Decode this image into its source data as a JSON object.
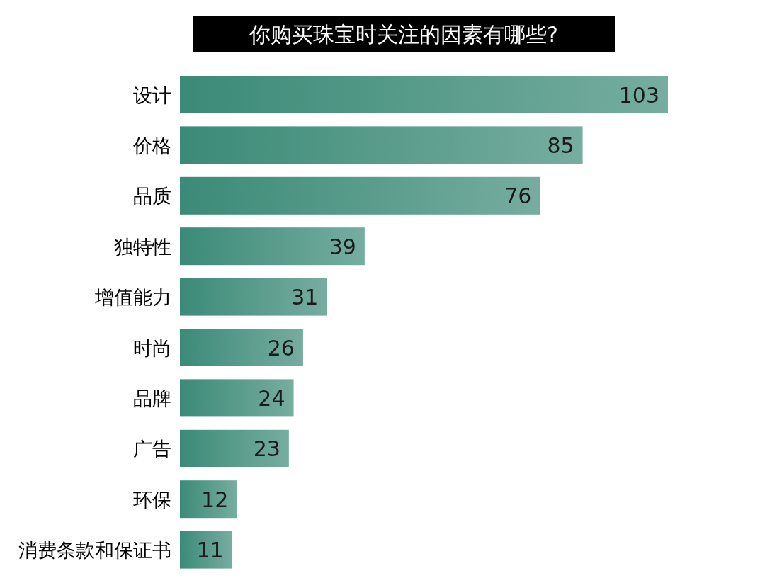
{
  "chart_data": {
    "type": "bar",
    "orientation": "horizontal",
    "title": "你购买珠宝时关注的因素有哪些?",
    "categories": [
      "设计",
      "价格",
      "品质",
      "独特性",
      "增值能力",
      "时尚",
      "品牌",
      "广告",
      "环保",
      "消费条款和保证书"
    ],
    "values": [
      103,
      85,
      76,
      39,
      31,
      26,
      24,
      23,
      12,
      11
    ],
    "color": "#3b8a77",
    "data_labels": true
  }
}
